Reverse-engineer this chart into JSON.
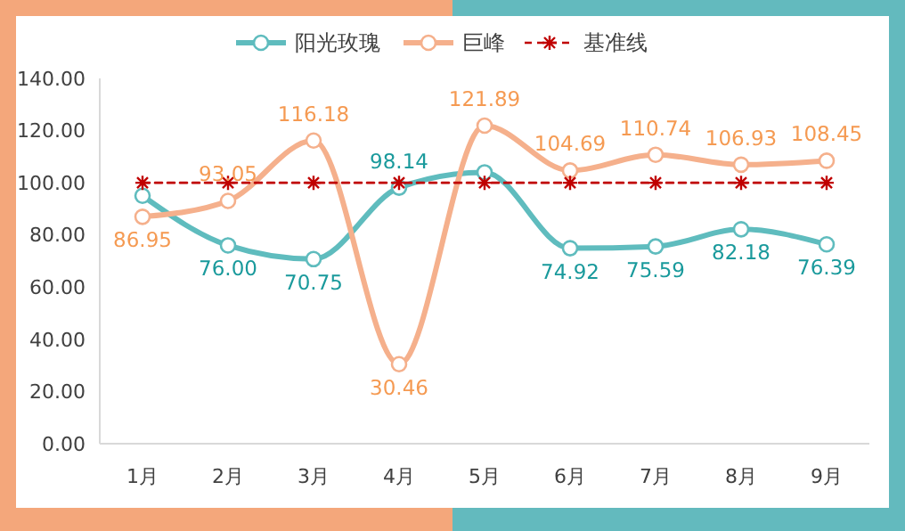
{
  "chart_data": {
    "type": "line",
    "categories": [
      "1月",
      "2月",
      "3月",
      "4月",
      "5月",
      "6月",
      "7月",
      "8月",
      "9月"
    ],
    "ylim": [
      0,
      140
    ],
    "yticks": [
      {
        "value": 0,
        "label": "0.00"
      },
      {
        "value": 20,
        "label": "20.00"
      },
      {
        "value": 40,
        "label": "40.00"
      },
      {
        "value": 60,
        "label": "60.00"
      },
      {
        "value": 80,
        "label": "80.00"
      },
      {
        "value": 100,
        "label": "100.00"
      },
      {
        "value": 120,
        "label": "120.00"
      },
      {
        "value": 140,
        "label": "140.00"
      }
    ],
    "grid": false,
    "legend": "top",
    "marker": "circle",
    "line_style": "solid",
    "series": [
      {
        "name": "阳光玫瑰",
        "color": "#5fbcbe",
        "values": [
          95,
          76.0,
          70.75,
          98.14,
          104,
          74.92,
          75.59,
          82.18,
          76.39
        ],
        "value_labels": [
          null,
          "76.00",
          "70.75",
          "98.14",
          null,
          "74.92",
          "75.59",
          "82.18",
          "76.39"
        ]
      },
      {
        "name": "巨峰",
        "color": "#f5b08c",
        "values": [
          86.95,
          93.05,
          116.18,
          30.46,
          121.89,
          104.69,
          110.74,
          106.93,
          108.45
        ],
        "value_labels": [
          "86.95",
          "93.05",
          "116.18",
          "30.46",
          "121.89",
          "104.69",
          "110.74",
          "106.93",
          "108.45"
        ]
      },
      {
        "name": "基准线",
        "color": "#c00000",
        "values": [
          100,
          100,
          100,
          100,
          100,
          100,
          100,
          100,
          100
        ],
        "marker": "cross",
        "line_style": "dashed"
      }
    ]
  }
}
